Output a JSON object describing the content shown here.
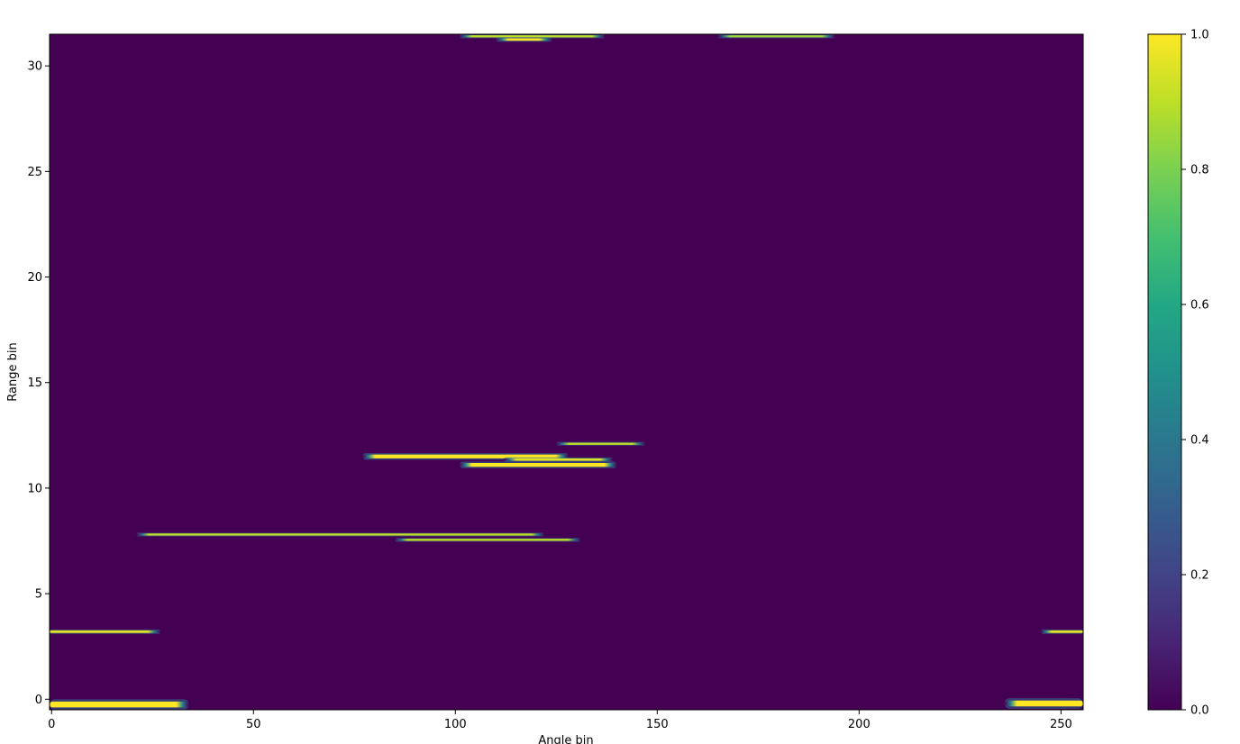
{
  "chart_data": {
    "type": "heatmap",
    "title": "",
    "xlabel": "Angle bin",
    "ylabel": "Range bin",
    "xlim": [
      -0.5,
      255.5
    ],
    "ylim": [
      -0.5,
      31.5
    ],
    "x_ticks": [
      0,
      50,
      100,
      150,
      200,
      250
    ],
    "y_ticks": [
      0,
      5,
      10,
      15,
      20,
      25,
      30
    ],
    "colormap": "viridis",
    "background_value": 0.0,
    "colorbar": {
      "range": [
        0.0,
        1.0
      ],
      "ticks": [
        "0.0",
        "0.2",
        "0.4",
        "0.6",
        "0.8",
        "1.0"
      ],
      "placement": "right"
    },
    "features": [
      {
        "range_bin": -0.25,
        "angle_start": -0.5,
        "angle_end": 34,
        "peak": 1.0,
        "thickness": 0.28
      },
      {
        "range_bin": 3.2,
        "angle_start": -0.5,
        "angle_end": 27,
        "peak": 0.95,
        "thickness": 0.12
      },
      {
        "range_bin": 7.8,
        "angle_start": 21,
        "angle_end": 122,
        "peak": 0.9,
        "thickness": 0.1
      },
      {
        "range_bin": 7.55,
        "angle_start": 85,
        "angle_end": 131,
        "peak": 0.9,
        "thickness": 0.1
      },
      {
        "range_bin": 11.5,
        "angle_start": 77,
        "angle_end": 128,
        "peak": 1.0,
        "thickness": 0.18
      },
      {
        "range_bin": 11.35,
        "angle_start": 112,
        "angle_end": 139,
        "peak": 0.95,
        "thickness": 0.12
      },
      {
        "range_bin": 11.1,
        "angle_start": 101,
        "angle_end": 140,
        "peak": 1.0,
        "thickness": 0.18
      },
      {
        "range_bin": 12.1,
        "angle_start": 125,
        "angle_end": 147,
        "peak": 0.9,
        "thickness": 0.1
      },
      {
        "range_bin": 31.4,
        "angle_start": 101,
        "angle_end": 137,
        "peak": 0.9,
        "thickness": 0.1
      },
      {
        "range_bin": 31.25,
        "angle_start": 110,
        "angle_end": 124,
        "peak": 1.0,
        "thickness": 0.12
      },
      {
        "range_bin": 31.4,
        "angle_start": 165,
        "angle_end": 194,
        "peak": 0.85,
        "thickness": 0.1
      },
      {
        "range_bin": 3.2,
        "angle_start": 245,
        "angle_end": 255.5,
        "peak": 0.95,
        "thickness": 0.12
      },
      {
        "range_bin": -0.2,
        "angle_start": 236,
        "angle_end": 255.5,
        "peak": 1.0,
        "thickness": 0.28
      }
    ]
  }
}
